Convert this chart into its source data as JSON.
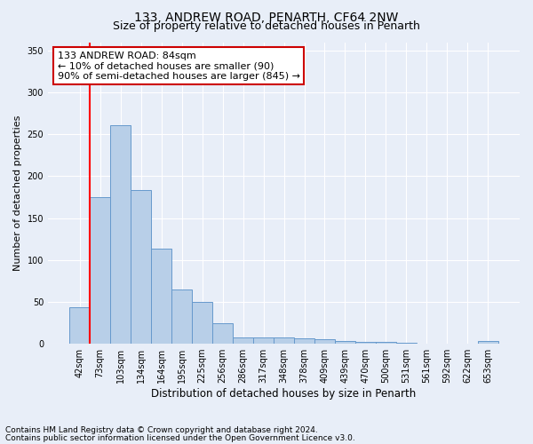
{
  "title1": "133, ANDREW ROAD, PENARTH, CF64 2NW",
  "title2": "Size of property relative to detached houses in Penarth",
  "xlabel": "Distribution of detached houses by size in Penarth",
  "ylabel": "Number of detached properties",
  "categories": [
    "42sqm",
    "73sqm",
    "103sqm",
    "134sqm",
    "164sqm",
    "195sqm",
    "225sqm",
    "256sqm",
    "286sqm",
    "317sqm",
    "348sqm",
    "378sqm",
    "409sqm",
    "439sqm",
    "470sqm",
    "500sqm",
    "531sqm",
    "561sqm",
    "592sqm",
    "622sqm",
    "653sqm"
  ],
  "values": [
    44,
    175,
    261,
    184,
    114,
    65,
    50,
    25,
    7,
    7,
    8,
    6,
    5,
    3,
    2,
    2,
    1,
    0,
    0,
    0,
    3
  ],
  "bar_color": "#b8cfe8",
  "bar_edge_color": "#6699cc",
  "bar_edge_width": 0.7,
  "red_line_x": 0.5,
  "annotation_line1": "133 ANDREW ROAD: 84sqm",
  "annotation_line2": "← 10% of detached houses are smaller (90)",
  "annotation_line3": "90% of semi-detached houses are larger (845) →",
  "annotation_box_color": "#ffffff",
  "annotation_box_edge_color": "#cc0000",
  "footnote1": "Contains HM Land Registry data © Crown copyright and database right 2024.",
  "footnote2": "Contains public sector information licensed under the Open Government Licence v3.0.",
  "bg_color": "#e8eef8",
  "plot_bg_color": "#e8eef8",
  "ylim": [
    0,
    360
  ],
  "yticks": [
    0,
    50,
    100,
    150,
    200,
    250,
    300,
    350
  ],
  "grid_color": "#ffffff",
  "title1_fontsize": 10,
  "title2_fontsize": 9,
  "xlabel_fontsize": 8.5,
  "ylabel_fontsize": 8,
  "tick_fontsize": 7,
  "annotation_fontsize": 8,
  "footnote_fontsize": 6.5
}
